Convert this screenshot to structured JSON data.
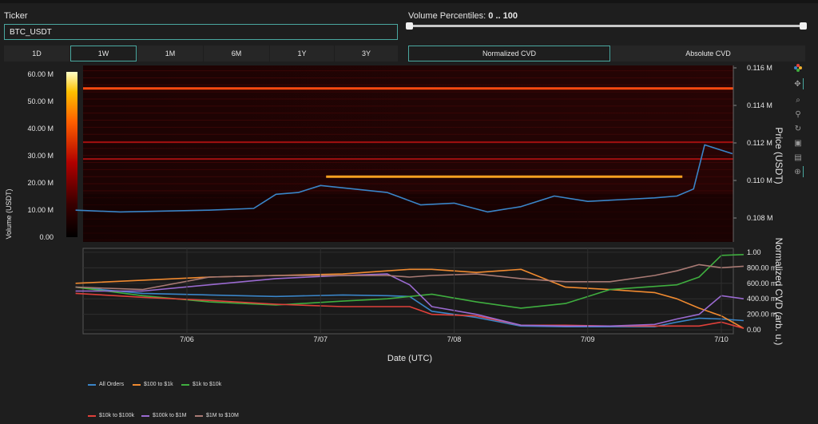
{
  "ticker": {
    "label": "Ticker",
    "value": "BTC_USDT"
  },
  "volume_percentiles": {
    "label": "Volume Percentiles:",
    "range": "0 .. 100",
    "low": 0,
    "high": 100
  },
  "timeframes": [
    {
      "label": "1D",
      "active": false
    },
    {
      "label": "1W",
      "active": true
    },
    {
      "label": "1M",
      "active": false
    },
    {
      "label": "6M",
      "active": false
    },
    {
      "label": "1Y",
      "active": false
    },
    {
      "label": "3Y",
      "active": false
    }
  ],
  "cvd_modes": [
    {
      "label": "Normalized CVD",
      "active": true
    },
    {
      "label": "Absolute CVD",
      "active": false
    }
  ],
  "modebar_icons": [
    "plotly-logo-icon",
    "pan-icon",
    "zoom-icon",
    "lasso-icon",
    "reset-icon",
    "download-icon",
    "hover-icon",
    "spike-icon"
  ],
  "chart_data": [
    {
      "type": "heatmap",
      "colorbar": {
        "title": "Volume (USDT)",
        "ticks": [
          "60.00 M",
          "50.00 M",
          "40.00 M",
          "30.00 M",
          "20.00 M",
          "10.00 M",
          "0.00"
        ],
        "range": [
          0,
          62000000
        ]
      },
      "yaxis": {
        "title": "Price (USDT)",
        "ticks": [
          "0.116 M",
          "0.114 M",
          "0.112 M",
          "0.110 M",
          "0.108 M"
        ],
        "range": [
          106300,
          116300
        ]
      },
      "levels": [
        {
          "price": 115000,
          "intensity": 1.0
        },
        {
          "price": 111950,
          "intensity": 0.6
        },
        {
          "price": 111000,
          "intensity": 0.55
        },
        {
          "price": 110000,
          "intensity": 0.9,
          "x_start": "2025-07-07T01:00",
          "x_end": "2025-07-09T17:00",
          "color": "#f5a020"
        }
      ],
      "price_series": {
        "color": "#3a85c8",
        "x": [
          "2025-07-05T04:00",
          "2025-07-05T12:00",
          "2025-07-05T20:00",
          "2025-07-06T04:00",
          "2025-07-06T12:00",
          "2025-07-06T16:00",
          "2025-07-06T20:00",
          "2025-07-07T00:00",
          "2025-07-07T06:00",
          "2025-07-07T12:00",
          "2025-07-07T18:00",
          "2025-07-08T00:00",
          "2025-07-08T06:00",
          "2025-07-08T12:00",
          "2025-07-08T18:00",
          "2025-07-09T00:00",
          "2025-07-09T06:00",
          "2025-07-09T12:00",
          "2025-07-09T16:00",
          "2025-07-09T19:00",
          "2025-07-09T21:00",
          "2025-07-10T02:00"
        ],
        "y": [
          108100,
          108000,
          108050,
          108100,
          108200,
          109000,
          109100,
          109500,
          109300,
          109100,
          108400,
          108500,
          108000,
          108300,
          108900,
          108600,
          108700,
          108800,
          108900,
          109300,
          111800,
          111300
        ]
      }
    },
    {
      "type": "line",
      "yaxis": {
        "title": "Normalized CVD (arb. u.)",
        "ticks": [
          "1.00",
          "800.00 m",
          "600.00 m",
          "400.00 m",
          "200.00 m",
          "0.00"
        ],
        "range": [
          -0.05,
          1.05
        ]
      },
      "xaxis": {
        "title": "Date (UTC)",
        "ticks": [
          "7/06",
          "7/07",
          "7/08",
          "7/09",
          "7/10"
        ]
      },
      "x": [
        "2025-07-05T04:00",
        "2025-07-05T16:00",
        "2025-07-06T04:00",
        "2025-07-06T16:00",
        "2025-07-07T04:00",
        "2025-07-07T12:00",
        "2025-07-07T16:00",
        "2025-07-07T20:00",
        "2025-07-08T04:00",
        "2025-07-08T12:00",
        "2025-07-08T20:00",
        "2025-07-09T04:00",
        "2025-07-09T12:00",
        "2025-07-09T16:00",
        "2025-07-09T20:00",
        "2025-07-10T00:00",
        "2025-07-10T04:00"
      ],
      "series": [
        {
          "name": "All Orders",
          "color": "#3a85c8",
          "values": [
            0.55,
            0.47,
            0.45,
            0.43,
            0.45,
            0.44,
            0.43,
            0.24,
            0.16,
            0.05,
            0.04,
            0.04,
            0.04,
            0.1,
            0.15,
            0.14,
            0.12
          ]
        },
        {
          "name": "$100 to $1k",
          "color": "#f08a30",
          "values": [
            0.6,
            0.64,
            0.68,
            0.7,
            0.72,
            0.76,
            0.78,
            0.78,
            0.74,
            0.78,
            0.55,
            0.52,
            0.48,
            0.4,
            0.28,
            0.18,
            0.02
          ]
        },
        {
          "name": "$1k to $10k",
          "color": "#3fae3f",
          "values": [
            0.55,
            0.44,
            0.36,
            0.32,
            0.37,
            0.4,
            0.43,
            0.46,
            0.36,
            0.28,
            0.34,
            0.52,
            0.56,
            0.58,
            0.68,
            0.96,
            0.97
          ]
        },
        {
          "name": "$10k to $100k",
          "color": "#e0403a",
          "values": [
            0.47,
            0.42,
            0.38,
            0.33,
            0.3,
            0.3,
            0.3,
            0.2,
            0.18,
            0.06,
            0.06,
            0.05,
            0.05,
            0.05,
            0.05,
            0.1,
            0.02
          ]
        },
        {
          "name": "$100k to $1M",
          "color": "#9a6ad0",
          "values": [
            0.5,
            0.5,
            0.58,
            0.66,
            0.7,
            0.72,
            0.58,
            0.3,
            0.2,
            0.06,
            0.05,
            0.05,
            0.07,
            0.14,
            0.2,
            0.44,
            0.4
          ]
        },
        {
          "name": "$1M to $10M",
          "color": "#a97a74",
          "values": [
            0.55,
            0.52,
            0.68,
            0.7,
            0.7,
            0.7,
            0.68,
            0.7,
            0.72,
            0.66,
            0.62,
            0.62,
            0.7,
            0.76,
            0.84,
            0.8,
            0.82
          ]
        }
      ]
    }
  ]
}
